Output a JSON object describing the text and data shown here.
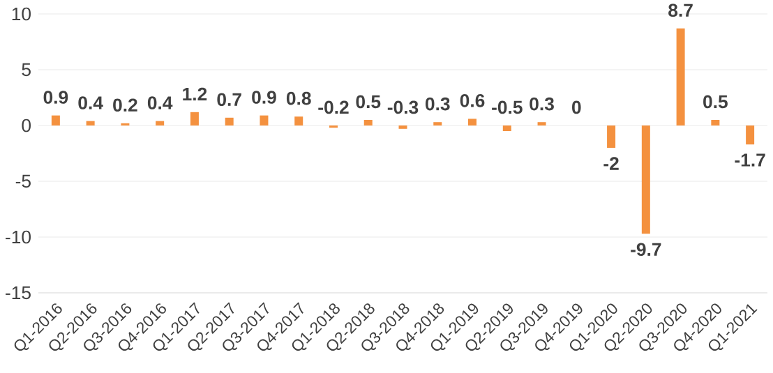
{
  "chart_data": {
    "type": "bar",
    "categories": [
      "Q1-2016",
      "Q2-2016",
      "Q3-2016",
      "Q4-2016",
      "Q1-2017",
      "Q2-2017",
      "Q3-2017",
      "Q4-2017",
      "Q1-2018",
      "Q2-2018",
      "Q3-2018",
      "Q4-2018",
      "Q1-2019",
      "Q2-2019",
      "Q3-2019",
      "Q4-2019",
      "Q1-2020",
      "Q2-2020",
      "Q3-2020",
      "Q4-2020",
      "Q1-2021"
    ],
    "values": [
      0.9,
      0.4,
      0.2,
      0.4,
      1.2,
      0.7,
      0.9,
      0.8,
      -0.2,
      0.5,
      -0.3,
      0.3,
      0.6,
      -0.5,
      0.3,
      0,
      -2,
      -9.7,
      8.7,
      0.5,
      -1.7
    ],
    "color": "#f4913f",
    "ylim": [
      -15,
      10
    ],
    "yticks": [
      -15,
      -10,
      -5,
      0,
      5,
      10
    ],
    "grid": "y",
    "data_labels": true
  }
}
